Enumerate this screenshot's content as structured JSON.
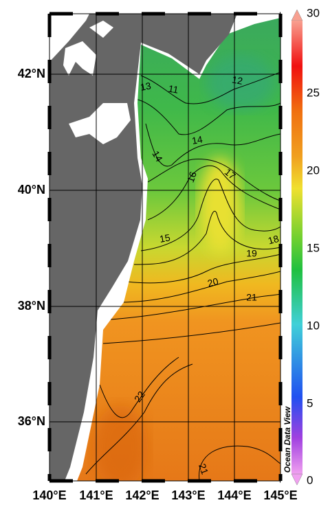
{
  "map": {
    "lat_labels": [
      "42°N",
      "40°N",
      "38°N",
      "36°N"
    ],
    "lon_labels": [
      "140°E",
      "141°E",
      "142°E",
      "143°E",
      "144°E",
      "145°E"
    ]
  },
  "colorbar": {
    "tick_labels": [
      30,
      25,
      20,
      15,
      10,
      5,
      0
    ]
  },
  "contour_labels": [
    13,
    11,
    12,
    14,
    14,
    16,
    17,
    15,
    18,
    19,
    20,
    21,
    22,
    21
  ],
  "watermark": "Ocean Data View"
}
